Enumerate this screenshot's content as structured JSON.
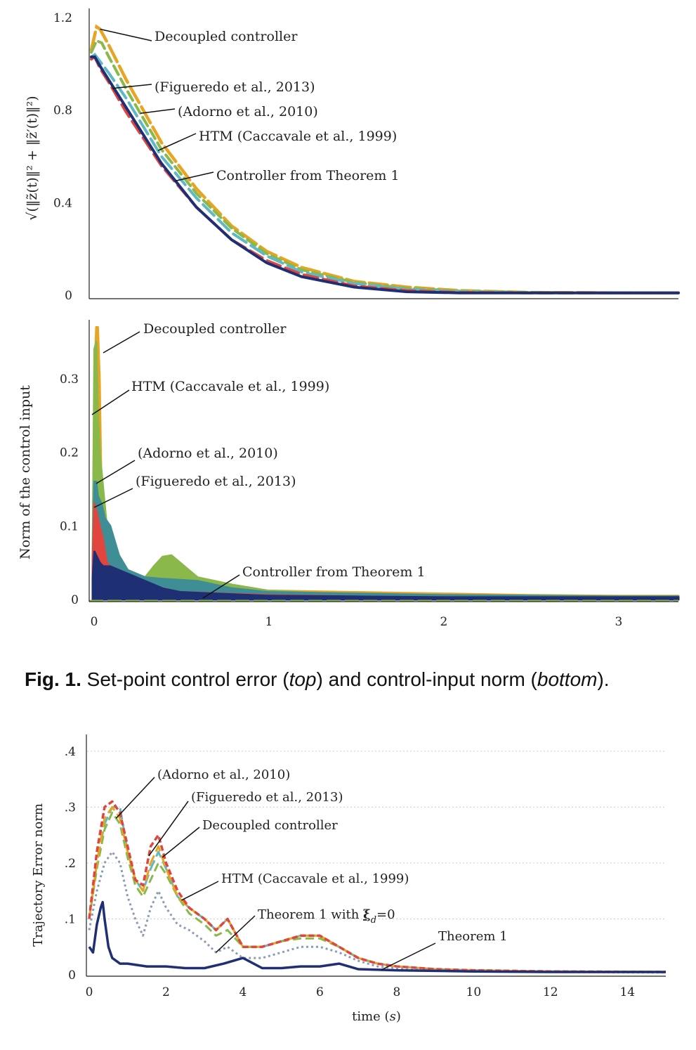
{
  "colors": {
    "decoupled": "#e8a524",
    "figueredo": "#e0463f",
    "adorno": "#8bb84a",
    "htm": "#5fb9c4",
    "htm_bottom": "#3f8e96",
    "theorem1": "#1f2f73",
    "theorem1_zero": "#8c9bb8",
    "axis": "#222222",
    "grid": "#cccccc"
  },
  "figure1": {
    "caption": {
      "label": "Fig. 1.",
      "part1": " Set-point control error (",
      "top": "top",
      "part2": ") and control-input norm (",
      "bottom": "bottom",
      "part3": ")."
    },
    "top_chart": {
      "type": "line",
      "ylabel": "√(‖z̃(t)‖² + ‖z̃′(t)‖²)",
      "xlim": [
        0,
        3.35
      ],
      "ylim": [
        0,
        1.2
      ],
      "yticks": [
        "1.2",
        "0.8",
        "0.4",
        "0"
      ],
      "yticks_values": [
        1.2,
        0.8,
        0.4,
        0
      ],
      "annotations": [
        {
          "text": "Decoupled controller",
          "series": "decoupled"
        },
        {
          "text": "(Figueredo et al., 2013)",
          "series": "figueredo"
        },
        {
          "text": "(Adorno et al., 2010)",
          "series": "adorno"
        },
        {
          "text": "HTM (Caccavale et al., 1999)",
          "series": "htm"
        },
        {
          "text": "Controller from Theorem 1",
          "series": "theorem1"
        }
      ],
      "series": [
        {
          "key": "decoupled",
          "x": [
            0,
            0.03,
            0.05,
            0.1,
            0.2,
            0.4,
            0.6,
            0.8,
            1.0,
            1.2,
            1.5,
            1.8,
            2.1,
            2.5,
            3.0,
            3.35
          ],
          "y": [
            1.06,
            1.16,
            1.15,
            1.08,
            0.93,
            0.66,
            0.46,
            0.3,
            0.19,
            0.12,
            0.06,
            0.035,
            0.02,
            0.012,
            0.01,
            0.01
          ]
        },
        {
          "key": "adorno",
          "x": [
            0,
            0.03,
            0.06,
            0.1,
            0.2,
            0.4,
            0.6,
            0.8,
            1.0,
            1.2,
            1.5,
            1.8,
            2.1,
            2.5,
            3.0,
            3.35
          ],
          "y": [
            1.05,
            1.1,
            1.09,
            1.03,
            0.89,
            0.63,
            0.44,
            0.29,
            0.18,
            0.11,
            0.055,
            0.03,
            0.018,
            0.012,
            0.01,
            0.01
          ]
        },
        {
          "key": "htm",
          "x": [
            0,
            0.02,
            0.05,
            0.1,
            0.2,
            0.4,
            0.6,
            0.8,
            1.0,
            1.2,
            1.5,
            1.8,
            2.1,
            2.5,
            3.0,
            3.35
          ],
          "y": [
            1.03,
            1.04,
            1.01,
            0.96,
            0.85,
            0.6,
            0.42,
            0.27,
            0.17,
            0.1,
            0.05,
            0.025,
            0.015,
            0.01,
            0.01,
            0.01
          ]
        },
        {
          "key": "figueredo",
          "x": [
            0,
            0.02,
            0.05,
            0.1,
            0.2,
            0.4,
            0.6,
            0.8,
            1.0,
            1.2,
            1.5,
            1.8,
            2.1,
            2.5,
            3.0,
            3.35
          ],
          "y": [
            1.02,
            1.03,
            0.98,
            0.92,
            0.79,
            0.56,
            0.38,
            0.24,
            0.15,
            0.09,
            0.04,
            0.02,
            0.012,
            0.01,
            0.01,
            0.01
          ]
        },
        {
          "key": "theorem1",
          "x": [
            0,
            0.02,
            0.05,
            0.1,
            0.2,
            0.4,
            0.6,
            0.8,
            1.0,
            1.2,
            1.5,
            1.8,
            2.1,
            2.5,
            3.0,
            3.35
          ],
          "y": [
            1.03,
            1.03,
            0.99,
            0.93,
            0.81,
            0.57,
            0.38,
            0.24,
            0.14,
            0.08,
            0.035,
            0.015,
            0.01,
            0.01,
            0.01,
            0.01
          ]
        }
      ]
    },
    "bottom_chart": {
      "type": "area",
      "ylabel": "Norm of the control input",
      "xlim": [
        -0.02,
        3.35
      ],
      "ylim": [
        0,
        0.38
      ],
      "yticks": [
        "0.3",
        "0.2",
        "0.1",
        "0"
      ],
      "yticks_values": [
        0.3,
        0.2,
        0.1,
        0
      ],
      "xticks": [
        "0",
        "1",
        "2",
        "3"
      ],
      "xticks_values": [
        0,
        1,
        2,
        3
      ],
      "annotations": [
        {
          "text": "Decoupled controller",
          "series": "decoupled"
        },
        {
          "text": "HTM (Caccavale et al., 1999)",
          "series": "htm"
        },
        {
          "text": "(Adorno et al., 2010)",
          "series": "adorno"
        },
        {
          "text": "(Figueredo et al., 2013)",
          "series": "figueredo"
        },
        {
          "text": "Controller from Theorem 1",
          "series": "theorem1"
        }
      ],
      "series": [
        {
          "key": "decoupled",
          "x": [
            0,
            0.01,
            0.02,
            0.03,
            0.04,
            0.05,
            0.07,
            0.1,
            0.2,
            0.5,
            1.0,
            1.5,
            2.0,
            2.5,
            3.0,
            3.35
          ],
          "y": [
            0.05,
            0.3,
            0.37,
            0.37,
            0.3,
            0.15,
            0.06,
            0.04,
            0.03,
            0.02,
            0.012,
            0.01,
            0.008,
            0.006,
            0.005,
            0.005
          ]
        },
        {
          "key": "adorno",
          "x": [
            0,
            0.01,
            0.02,
            0.03,
            0.04,
            0.06,
            0.08,
            0.1,
            0.15,
            0.2,
            0.25,
            0.3,
            0.35,
            0.4,
            0.45,
            0.5,
            0.55,
            0.6,
            0.7,
            0.8,
            1.0,
            1.5,
            2.0,
            2.5,
            3.0,
            3.35
          ],
          "y": [
            0.05,
            0.34,
            0.35,
            0.25,
            0.2,
            0.15,
            0.1,
            0.07,
            0.05,
            0.04,
            0.03,
            0.03,
            0.045,
            0.058,
            0.06,
            0.05,
            0.04,
            0.03,
            0.025,
            0.02,
            0.012,
            0.006,
            0.004,
            0.003,
            0.002,
            0.002
          ]
        },
        {
          "key": "htm",
          "x": [
            0,
            0.01,
            0.02,
            0.03,
            0.05,
            0.07,
            0.1,
            0.15,
            0.2,
            0.3,
            0.4,
            0.6,
            0.8,
            1.0,
            1.5,
            2.0,
            2.5,
            3.0,
            3.35
          ],
          "y": [
            0.05,
            0.16,
            0.16,
            0.14,
            0.13,
            0.11,
            0.1,
            0.06,
            0.04,
            0.03,
            0.028,
            0.025,
            0.015,
            0.01,
            0.008,
            0.006,
            0.005,
            0.004,
            0.004
          ]
        },
        {
          "key": "figueredo",
          "x": [
            0,
            0.01,
            0.02,
            0.04,
            0.06,
            0.08,
            0.1,
            0.15,
            0.2,
            0.3,
            0.5,
            1.0,
            1.5,
            2.0,
            3.35
          ],
          "y": [
            0.04,
            0.13,
            0.12,
            0.1,
            0.08,
            0.05,
            0.045,
            0.04,
            0.03,
            0.02,
            0.01,
            0.006,
            0.004,
            0.003,
            0.002
          ]
        },
        {
          "key": "theorem1",
          "x": [
            0,
            0.01,
            0.02,
            0.04,
            0.06,
            0.1,
            0.15,
            0.2,
            0.3,
            0.4,
            0.5,
            0.7,
            1.0,
            1.5,
            2.0,
            3.35
          ],
          "y": [
            0.03,
            0.065,
            0.06,
            0.05,
            0.045,
            0.045,
            0.04,
            0.035,
            0.025,
            0.015,
            0.01,
            0.008,
            0.005,
            0.004,
            0.003,
            0.003
          ]
        }
      ]
    }
  },
  "figure2": {
    "type": "line",
    "ylabel": "Trajectory Error norm",
    "xlabel_main": "time (",
    "xlabel_unit": "s",
    "xlabel_close": ")",
    "xlim": [
      0,
      15
    ],
    "ylim": [
      0,
      0.43
    ],
    "yticks": [
      ".4",
      ".3",
      ".2",
      ".1",
      "0"
    ],
    "yticks_values": [
      0.4,
      0.3,
      0.2,
      0.1,
      0
    ],
    "xticks": [
      "0",
      "2",
      "4",
      "6",
      "8",
      "10",
      "12",
      "14"
    ],
    "xticks_values": [
      0,
      2,
      4,
      6,
      8,
      10,
      12,
      14
    ],
    "grid": true,
    "annotations": [
      {
        "text": "(Adorno et al., 2010)",
        "series": "adorno"
      },
      {
        "text": "(Figueredo et al., 2013)",
        "series": "figueredo"
      },
      {
        "text": "Decoupled controller",
        "series": "decoupled"
      },
      {
        "text": "HTM (Caccavale et al., 1999)",
        "series": "htm"
      },
      {
        "text_main": "Theorem 1 with ",
        "text_sym": "ξ",
        "text_sub": "d",
        "text_tail": "=0",
        "series": "theorem1_zero"
      },
      {
        "text": "Theorem 1",
        "series": "theorem1"
      }
    ],
    "series": [
      {
        "key": "htm",
        "x": [
          0,
          0.2,
          0.4,
          0.6,
          0.8,
          1.0,
          1.2,
          1.4,
          1.6,
          1.8,
          2.0,
          2.3,
          2.6,
          3.0,
          3.3,
          3.6,
          4.0,
          4.5,
          5.0,
          5.5,
          6.0,
          6.5,
          7.0,
          7.5,
          8.0,
          9.0,
          10.0,
          12.0,
          15.0
        ],
        "y": [
          0.1,
          0.2,
          0.27,
          0.3,
          0.3,
          0.22,
          0.17,
          0.15,
          0.19,
          0.22,
          0.19,
          0.14,
          0.12,
          0.1,
          0.08,
          0.1,
          0.05,
          0.05,
          0.06,
          0.07,
          0.07,
          0.05,
          0.03,
          0.02,
          0.015,
          0.01,
          0.008,
          0.006,
          0.005
        ]
      },
      {
        "key": "adorno",
        "x": [
          0,
          0.2,
          0.4,
          0.6,
          0.8,
          1.0,
          1.2,
          1.4,
          1.6,
          1.8,
          2.0,
          2.3,
          2.6,
          3.0,
          3.3,
          3.6,
          4.0,
          4.5,
          5.0,
          5.5,
          6.0,
          6.5,
          7.0,
          7.5,
          8.0,
          9.0,
          10.0,
          12.0,
          15.0
        ],
        "y": [
          0.1,
          0.19,
          0.26,
          0.29,
          0.27,
          0.21,
          0.16,
          0.14,
          0.17,
          0.2,
          0.18,
          0.14,
          0.11,
          0.09,
          0.07,
          0.08,
          0.05,
          0.05,
          0.06,
          0.065,
          0.065,
          0.05,
          0.03,
          0.02,
          0.015,
          0.01,
          0.008,
          0.006,
          0.005
        ]
      },
      {
        "key": "decoupled",
        "x": [
          0,
          0.2,
          0.4,
          0.6,
          0.8,
          1.0,
          1.2,
          1.4,
          1.6,
          1.8,
          2.0,
          2.3,
          2.6,
          3.0,
          3.3,
          3.6,
          4.0,
          4.5,
          5.0,
          5.5,
          6.0,
          6.5,
          7.0,
          7.5,
          8.0,
          9.0,
          10.0,
          12.0,
          15.0
        ],
        "y": [
          0.1,
          0.2,
          0.28,
          0.3,
          0.28,
          0.22,
          0.17,
          0.15,
          0.2,
          0.23,
          0.19,
          0.14,
          0.12,
          0.1,
          0.08,
          0.1,
          0.05,
          0.05,
          0.06,
          0.07,
          0.07,
          0.05,
          0.03,
          0.02,
          0.015,
          0.01,
          0.008,
          0.006,
          0.005
        ]
      },
      {
        "key": "figueredo",
        "x": [
          0,
          0.2,
          0.4,
          0.6,
          0.8,
          1.0,
          1.2,
          1.4,
          1.6,
          1.8,
          2.0,
          2.3,
          2.6,
          3.0,
          3.3,
          3.6,
          4.0,
          4.5,
          5.0,
          5.5,
          6.0,
          6.5,
          7.0,
          7.5,
          8.0,
          9.0,
          10.0,
          12.0,
          15.0
        ],
        "y": [
          0.1,
          0.22,
          0.3,
          0.31,
          0.29,
          0.23,
          0.17,
          0.16,
          0.23,
          0.25,
          0.2,
          0.15,
          0.12,
          0.1,
          0.08,
          0.1,
          0.05,
          0.05,
          0.06,
          0.07,
          0.07,
          0.05,
          0.03,
          0.02,
          0.015,
          0.01,
          0.008,
          0.006,
          0.005
        ]
      },
      {
        "key": "theorem1_zero",
        "x": [
          0,
          0.2,
          0.4,
          0.6,
          0.8,
          1.0,
          1.2,
          1.4,
          1.6,
          1.8,
          2.0,
          2.3,
          2.6,
          3.0,
          3.3,
          3.6,
          4.0,
          4.5,
          5.0,
          5.5,
          6.0,
          6.5,
          7.0,
          7.5,
          8.0,
          9.0,
          10.0,
          12.0,
          15.0
        ],
        "y": [
          0.08,
          0.15,
          0.2,
          0.22,
          0.2,
          0.14,
          0.1,
          0.07,
          0.12,
          0.15,
          0.12,
          0.09,
          0.08,
          0.06,
          0.04,
          0.05,
          0.03,
          0.03,
          0.04,
          0.05,
          0.05,
          0.04,
          0.025,
          0.015,
          0.012,
          0.008,
          0.006,
          0.005,
          0.004
        ]
      },
      {
        "key": "theorem1",
        "x": [
          0,
          0.1,
          0.2,
          0.3,
          0.35,
          0.4,
          0.5,
          0.6,
          0.8,
          1.0,
          1.5,
          2.0,
          2.5,
          3.0,
          3.5,
          4.0,
          4.5,
          5.0,
          5.5,
          6.0,
          6.5,
          7.0,
          8.0,
          10.0,
          12.0,
          15.0
        ],
        "y": [
          0.05,
          0.04,
          0.09,
          0.12,
          0.13,
          0.1,
          0.05,
          0.03,
          0.02,
          0.02,
          0.015,
          0.015,
          0.012,
          0.012,
          0.02,
          0.03,
          0.012,
          0.012,
          0.015,
          0.015,
          0.02,
          0.01,
          0.008,
          0.006,
          0.005,
          0.005
        ]
      }
    ]
  }
}
